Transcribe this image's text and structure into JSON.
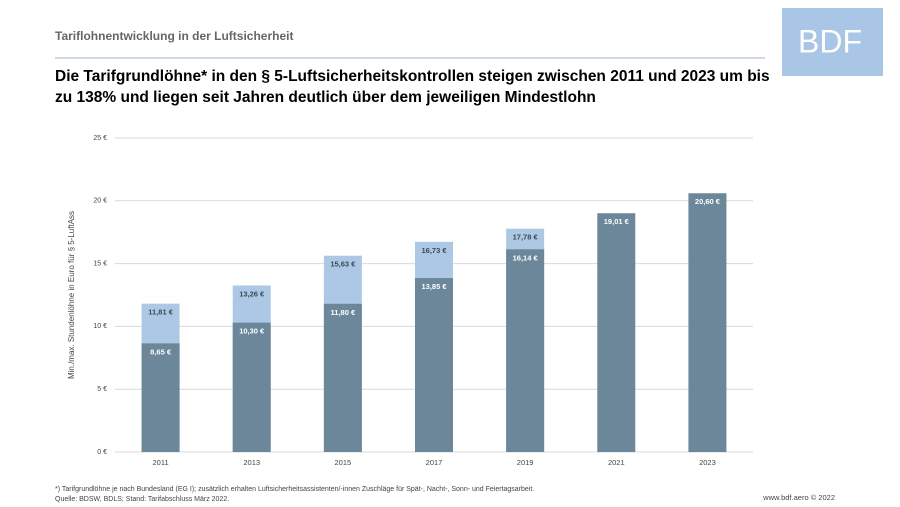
{
  "header": {
    "title": "Tariflohnentwicklung in der Luftsicherheit",
    "logo": "BDF"
  },
  "chart_data": {
    "type": "bar",
    "title": "Die Tarifgrundlöhne* in den § 5-Luftsicherheitskontrollen steigen zwischen 2011 und 2023 um bis zu 138% und liegen seit Jahren deutlich über dem jeweiligen Mindestlohn",
    "y_label": "Min./max. Stundenlöhne in Euro für § 5-LuftAss",
    "categories": [
      "2011",
      "2013",
      "2015",
      "2017",
      "2019",
      "2021",
      "2023"
    ],
    "series": [
      {
        "color": "#adc8e4",
        "values": [
          11.81,
          13.26,
          15.63,
          16.73,
          17.78,
          null,
          null
        ],
        "value_labels": [
          "11,81 €",
          "13,26 €",
          "15,63 €",
          "16,73 €",
          "17,78 €",
          null,
          null
        ]
      },
      {
        "color": "#6b8799",
        "values": [
          8.65,
          10.3,
          11.8,
          13.85,
          16.14,
          19.01,
          20.6
        ],
        "value_labels": [
          "8,65 €",
          "10,30 €",
          "11,80 €",
          "13,85 €",
          "16,14 €",
          "19,01 €",
          "20,60 €"
        ]
      }
    ],
    "ylim": [
      0,
      25
    ],
    "yticks": [
      {
        "value": 0,
        "label": "0 €"
      },
      {
        "value": 5,
        "label": "5 €"
      },
      {
        "value": 10,
        "label": "10 €"
      },
      {
        "value": 15,
        "label": "15 €"
      },
      {
        "value": 20,
        "label": "20 €"
      },
      {
        "value": 25,
        "label": "25 €"
      }
    ],
    "grid": true
  },
  "footer": {
    "note": "*) Tarifgrundlöhne je nach Bundesland (EG I); zusätzlich erhalten Luftsicherheitsassistenten/-innen Zuschläge für Spät-, Nacht-, Sonn- und Feiertagsarbeit.",
    "source": "Quelle: BDSW, BDLS; Stand: Tarifabschluss März 2022.",
    "copyright": "www.bdf.aero © 2022"
  }
}
